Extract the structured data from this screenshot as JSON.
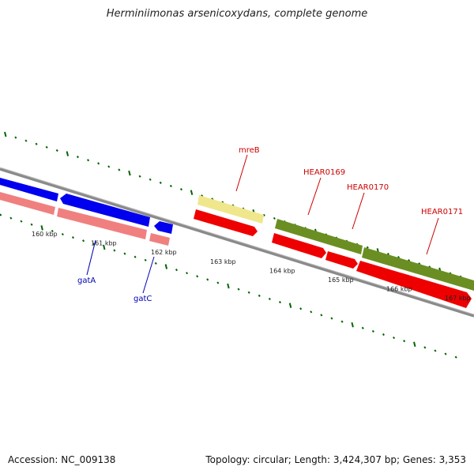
{
  "header": {
    "title": "Herminiimonas arsenicoxydans, complete genome"
  },
  "footer": {
    "accession": "Accession: NC_009138",
    "summary": "Topology: circular; Length: 3,424,307 bp; Genes: 3,353"
  },
  "scale": {
    "tick_labels": [
      "160 kbp",
      "161 kbp",
      "162 kbp",
      "163 kbp",
      "164 kbp",
      "165 kbp",
      "166 kbp",
      "167 kbp"
    ]
  },
  "gene_labels": [
    {
      "name": "gatA",
      "strand": "reverse",
      "color": "#0000b4"
    },
    {
      "name": "gatC",
      "strand": "reverse",
      "color": "#0000b4"
    },
    {
      "name": "mreB",
      "strand": "forward",
      "color": "#cc0000"
    },
    {
      "name": "HEAR0169",
      "strand": "forward",
      "color": "#cc0000"
    },
    {
      "name": "HEAR0170",
      "strand": "forward",
      "color": "#cc0000"
    },
    {
      "name": "HEAR0171",
      "strand": "forward",
      "color": "#cc0000"
    }
  ],
  "legend_colors": {
    "backbone": "#888888",
    "forward_cds": "#ee0000",
    "reverse_cds": "#0000ee",
    "rna_forward": "#6b8e23",
    "rna_reverse": "#f0e68c",
    "reverse_light": "#f08080",
    "ticks": "#006400"
  }
}
